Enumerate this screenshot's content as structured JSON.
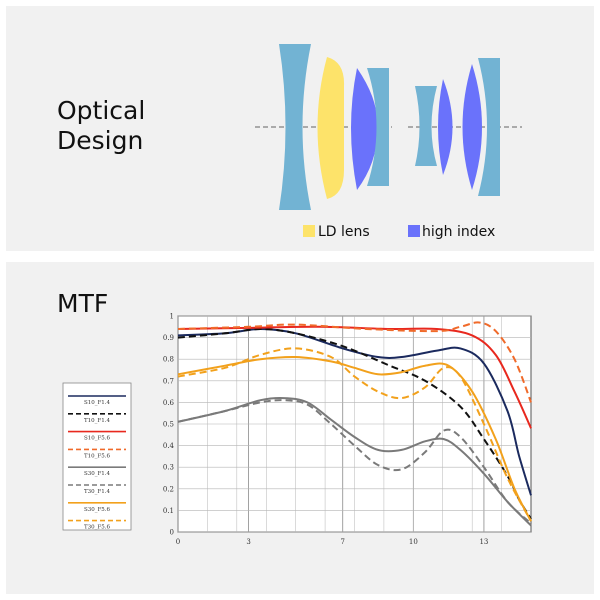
{
  "optical": {
    "title_line1": "Optical",
    "title_line2": "Design",
    "legend": [
      {
        "label": "LD lens",
        "color": "#fde36a"
      },
      {
        "label": "high index",
        "color": "#6a72fb"
      }
    ],
    "colors": {
      "standard_lens": "#72b3d3",
      "ld_lens": "#fde36a",
      "high_index": "#6a72fb"
    }
  },
  "mtf": {
    "title": "MTF",
    "chart_data": {
      "type": "line",
      "xlim": [
        0,
        15
      ],
      "ylim": [
        0,
        1
      ],
      "x_ticks": [
        "0",
        "3",
        "7",
        "10",
        "13"
      ],
      "y_ticks": [
        "0",
        "0.1",
        "0.2",
        "0.3",
        "0.4",
        "0.5",
        "0.6",
        "0.7",
        "0.8",
        "0.9",
        "1"
      ],
      "grid": true,
      "legend_position": "left",
      "series": [
        {
          "name": "S10_F1.4",
          "color": "#1b2a5e",
          "dashed": false,
          "points": [
            [
              0,
              0.91
            ],
            [
              2,
              0.92
            ],
            [
              3.5,
              0.94
            ],
            [
              5,
              0.92
            ],
            [
              7,
              0.85
            ],
            [
              8.5,
              0.81
            ],
            [
              9.5,
              0.81
            ],
            [
              11,
              0.84
            ],
            [
              12,
              0.85
            ],
            [
              13,
              0.78
            ],
            [
              14,
              0.56
            ],
            [
              14.5,
              0.35
            ],
            [
              15,
              0.17
            ]
          ]
        },
        {
          "name": "T10_F1.4",
          "color": "#111111",
          "dashed": true,
          "points": [
            [
              0,
              0.9
            ],
            [
              2,
              0.92
            ],
            [
              3.5,
              0.94
            ],
            [
              5,
              0.92
            ],
            [
              7,
              0.86
            ],
            [
              9,
              0.77
            ],
            [
              10.5,
              0.7
            ],
            [
              12,
              0.58
            ],
            [
              13,
              0.43
            ],
            [
              14,
              0.26
            ],
            [
              14.5,
              0.15
            ],
            [
              15,
              0.06
            ]
          ]
        },
        {
          "name": "S10_F5.6",
          "color": "#e8281e",
          "dashed": false,
          "points": [
            [
              0,
              0.94
            ],
            [
              3,
              0.945
            ],
            [
              6,
              0.95
            ],
            [
              9,
              0.94
            ],
            [
              11,
              0.94
            ],
            [
              12.5,
              0.91
            ],
            [
              13.5,
              0.82
            ],
            [
              14.3,
              0.65
            ],
            [
              15,
              0.48
            ]
          ]
        },
        {
          "name": "T10_F5.6",
          "color": "#f06a2a",
          "dashed": true,
          "points": [
            [
              0,
              0.94
            ],
            [
              3,
              0.95
            ],
            [
              5,
              0.96
            ],
            [
              8,
              0.94
            ],
            [
              11,
              0.93
            ],
            [
              12,
              0.95
            ],
            [
              12.8,
              0.97
            ],
            [
              13.5,
              0.93
            ],
            [
              14.3,
              0.8
            ],
            [
              15,
              0.6
            ]
          ]
        },
        {
          "name": "S30_F1.4",
          "color": "#7a7a7a",
          "dashed": false,
          "points": [
            [
              0,
              0.51
            ],
            [
              2,
              0.56
            ],
            [
              3.5,
              0.61
            ],
            [
              4.5,
              0.62
            ],
            [
              5.5,
              0.6
            ],
            [
              6.5,
              0.52
            ],
            [
              7.5,
              0.44
            ],
            [
              8.5,
              0.38
            ],
            [
              9.5,
              0.38
            ],
            [
              10.5,
              0.42
            ],
            [
              11.3,
              0.43
            ],
            [
              12,
              0.38
            ],
            [
              13,
              0.27
            ],
            [
              14,
              0.14
            ],
            [
              15,
              0.03
            ]
          ]
        },
        {
          "name": "T30_F1.4",
          "color": "#7a7a7a",
          "dashed": true,
          "points": [
            [
              0,
              0.51
            ],
            [
              2,
              0.56
            ],
            [
              3.5,
              0.6
            ],
            [
              4.5,
              0.61
            ],
            [
              5.5,
              0.59
            ],
            [
              6.5,
              0.5
            ],
            [
              7.5,
              0.4
            ],
            [
              8.5,
              0.31
            ],
            [
              9.5,
              0.29
            ],
            [
              10.5,
              0.37
            ],
            [
              11.3,
              0.47
            ],
            [
              12,
              0.44
            ],
            [
              13,
              0.3
            ],
            [
              14,
              0.14
            ],
            [
              15,
              0.04
            ]
          ]
        },
        {
          "name": "S30_F5.6",
          "color": "#f2a11c",
          "dashed": false,
          "points": [
            [
              0,
              0.73
            ],
            [
              2,
              0.77
            ],
            [
              3.5,
              0.8
            ],
            [
              5,
              0.81
            ],
            [
              6.5,
              0.79
            ],
            [
              7.5,
              0.76
            ],
            [
              8.5,
              0.73
            ],
            [
              9.5,
              0.74
            ],
            [
              10.5,
              0.77
            ],
            [
              11.5,
              0.77
            ],
            [
              12.5,
              0.65
            ],
            [
              13.5,
              0.43
            ],
            [
              14.3,
              0.2
            ],
            [
              15,
              0.05
            ]
          ]
        },
        {
          "name": "T30_F5.6",
          "color": "#f2a11c",
          "dashed": true,
          "points": [
            [
              0,
              0.72
            ],
            [
              2,
              0.76
            ],
            [
              3.5,
              0.82
            ],
            [
              5,
              0.85
            ],
            [
              6.5,
              0.81
            ],
            [
              7.5,
              0.72
            ],
            [
              8.5,
              0.65
            ],
            [
              9.5,
              0.62
            ],
            [
              10.5,
              0.67
            ],
            [
              11.3,
              0.76
            ],
            [
              12,
              0.72
            ],
            [
              13,
              0.5
            ],
            [
              14,
              0.25
            ],
            [
              15,
              0.05
            ]
          ]
        }
      ]
    }
  }
}
